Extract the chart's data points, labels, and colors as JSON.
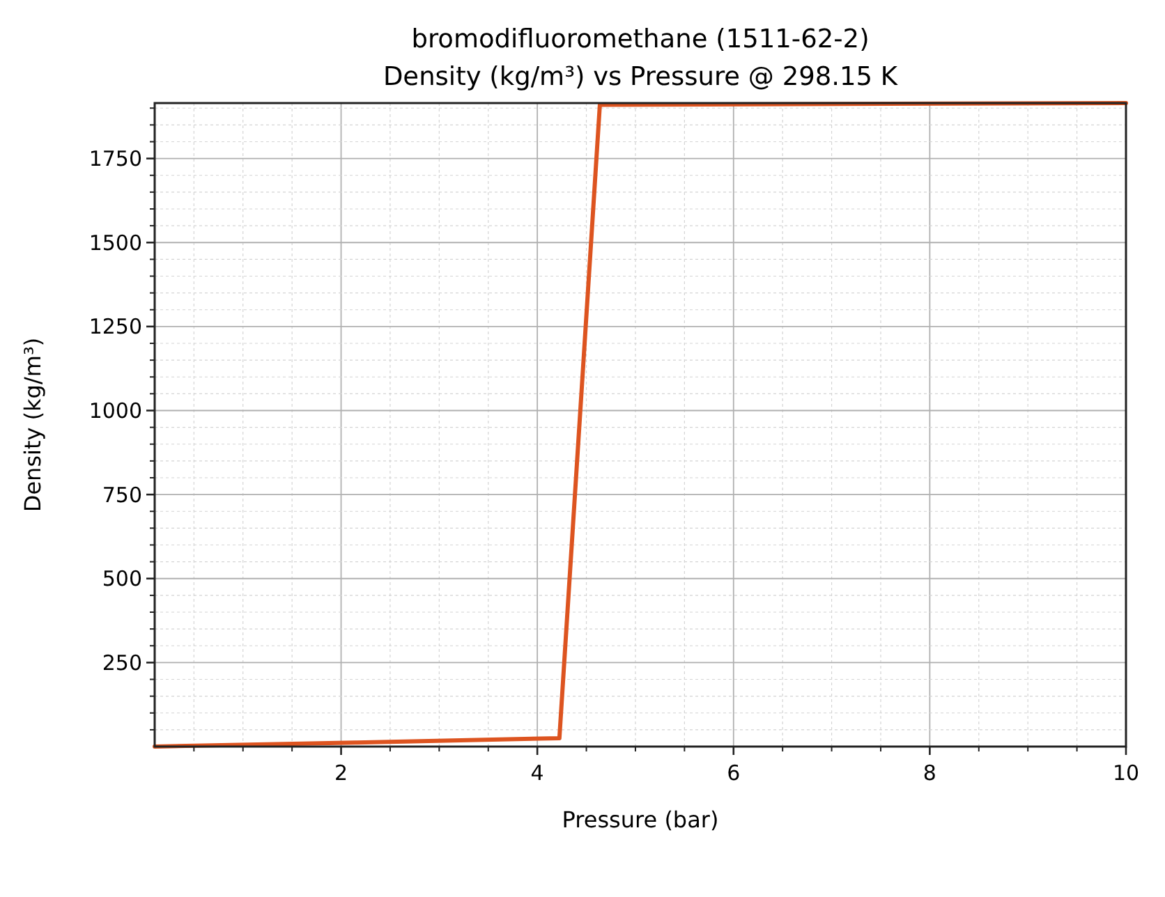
{
  "chart_data": {
    "type": "line",
    "title": "bromodifluoromethane (1511-62-2)\nDensity (kg/m³) vs Pressure @ 298.15 K",
    "xlabel": "Pressure (bar)",
    "ylabel": "Density (kg/m³)",
    "x": [
      0.1,
      2.1625,
      4.225,
      4.6375,
      10
    ],
    "series": [
      {
        "color": "#dd5420",
        "values": [
          0,
          12,
          25,
          1910,
          1915
        ]
      }
    ],
    "xlim": [
      0.1,
      10
    ],
    "ylim": [
      0,
      1915
    ],
    "xticks": [
      {
        "value": 0.5,
        "label": null
      },
      {
        "value": 1,
        "label": null
      },
      {
        "value": 1.5,
        "label": null
      },
      2,
      {
        "value": 2.5,
        "label": null
      },
      {
        "value": 3,
        "label": null
      },
      {
        "value": 3.5,
        "label": null
      },
      4,
      {
        "value": 4.5,
        "label": null
      },
      {
        "value": 5,
        "label": null
      },
      {
        "value": 5.5,
        "label": null
      },
      6,
      {
        "value": 6.5,
        "label": null
      },
      {
        "value": 7,
        "label": null
      },
      {
        "value": 7.5,
        "label": null
      },
      8,
      {
        "value": 8.5,
        "label": null
      },
      {
        "value": 9,
        "label": null
      },
      {
        "value": 9.5,
        "label": null
      },
      10
    ],
    "yticks": [
      {
        "value": 50,
        "label": null
      },
      {
        "value": 100,
        "label": null
      },
      {
        "value": 150,
        "label": null
      },
      {
        "value": 200,
        "label": null
      },
      250,
      {
        "value": 300,
        "label": null
      },
      {
        "value": 350,
        "label": null
      },
      {
        "value": 400,
        "label": null
      },
      {
        "value": 450,
        "label": null
      },
      500,
      {
        "value": 550,
        "label": null
      },
      {
        "value": 600,
        "label": null
      },
      {
        "value": 650,
        "label": null
      },
      {
        "value": 700,
        "label": null
      },
      750,
      {
        "value": 800,
        "label": null
      },
      {
        "value": 850,
        "label": null
      },
      {
        "value": 900,
        "label": null
      },
      {
        "value": 950,
        "label": null
      },
      1000,
      {
        "value": 1050,
        "label": null
      },
      {
        "value": 1100,
        "label": null
      },
      {
        "value": 1150,
        "label": null
      },
      {
        "value": 1200,
        "label": null
      },
      1250,
      {
        "value": 1300,
        "label": null
      },
      {
        "value": 1350,
        "label": null
      },
      {
        "value": 1400,
        "label": null
      },
      {
        "value": 1450,
        "label": null
      },
      1500,
      {
        "value": 1550,
        "label": null
      },
      {
        "value": 1600,
        "label": null
      },
      {
        "value": 1650,
        "label": null
      },
      {
        "value": 1700,
        "label": null
      },
      1750,
      {
        "value": 1800,
        "label": null
      },
      {
        "value": 1850,
        "label": null
      },
      {
        "value": 1900,
        "label": null
      }
    ],
    "grid": true,
    "line_style": "solid"
  }
}
